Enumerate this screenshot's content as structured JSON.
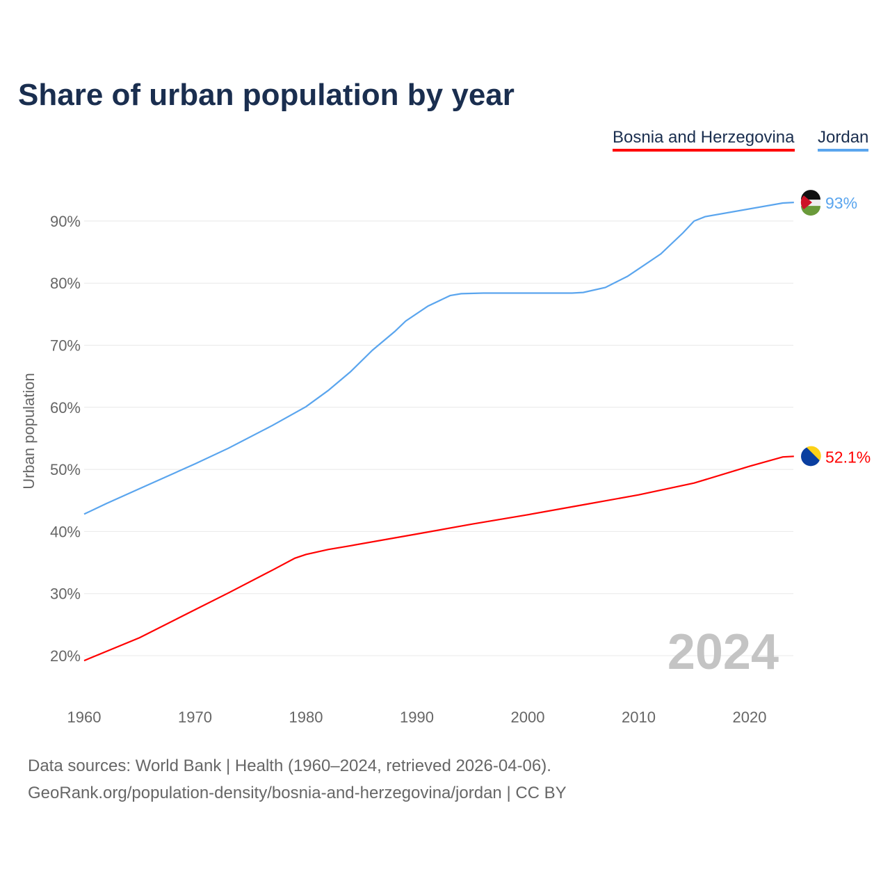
{
  "chart_data": {
    "type": "line",
    "title": "Share of urban population by year",
    "xlabel": "",
    "ylabel": "Urban population",
    "xlim": [
      1960,
      2024
    ],
    "ylim": [
      15,
      95
    ],
    "x_ticks": [
      "1960",
      "1970",
      "1980",
      "1990",
      "2000",
      "2010",
      "2020"
    ],
    "y_ticks": [
      "20%",
      "30%",
      "40%",
      "50%",
      "60%",
      "70%",
      "80%",
      "90%"
    ],
    "y_tick_values": [
      20,
      30,
      40,
      50,
      60,
      70,
      80,
      90
    ],
    "grid": true,
    "legend_position": "top-right",
    "watermark_year": "2024",
    "series": [
      {
        "name": "Bosnia and Herzegovina",
        "color": "#ff0000",
        "end_label": "52.1%",
        "points": [
          [
            1960,
            19.2
          ],
          [
            1965,
            22.9
          ],
          [
            1970,
            27.4
          ],
          [
            1973,
            30.1
          ],
          [
            1977,
            33.8
          ],
          [
            1979,
            35.7
          ],
          [
            1980,
            36.3
          ],
          [
            1982,
            37.1
          ],
          [
            1984,
            37.7
          ],
          [
            1990,
            39.6
          ],
          [
            1995,
            41.2
          ],
          [
            2000,
            42.7
          ],
          [
            2005,
            44.3
          ],
          [
            2010,
            45.9
          ],
          [
            2015,
            47.8
          ],
          [
            2020,
            50.5
          ],
          [
            2023,
            52.0
          ],
          [
            2024,
            52.1
          ]
        ]
      },
      {
        "name": "Jordan",
        "color": "#5aa5ee",
        "end_label": "93%",
        "points": [
          [
            1960,
            42.8
          ],
          [
            1962,
            44.5
          ],
          [
            1965,
            46.9
          ],
          [
            1970,
            50.9
          ],
          [
            1973,
            53.4
          ],
          [
            1977,
            57.1
          ],
          [
            1980,
            60.1
          ],
          [
            1982,
            62.7
          ],
          [
            1984,
            65.7
          ],
          [
            1986,
            69.2
          ],
          [
            1988,
            72.2
          ],
          [
            1989,
            73.9
          ],
          [
            1991,
            76.3
          ],
          [
            1993,
            78.0
          ],
          [
            1994,
            78.3
          ],
          [
            1996,
            78.4
          ],
          [
            2004,
            78.4
          ],
          [
            2005,
            78.5
          ],
          [
            2007,
            79.3
          ],
          [
            2008,
            80.2
          ],
          [
            2009,
            81.1
          ],
          [
            2010,
            82.3
          ],
          [
            2012,
            84.7
          ],
          [
            2014,
            88.1
          ],
          [
            2015,
            90.0
          ],
          [
            2016,
            90.7
          ],
          [
            2023,
            92.9
          ],
          [
            2024,
            93.0
          ]
        ]
      }
    ]
  },
  "footer": {
    "line1": "Data sources: World Bank | Health (1960–2024, retrieved 2026-04-06).",
    "line2": "GeoRank.org/population-density/bosnia-and-herzegovina/jordan | CC BY"
  }
}
